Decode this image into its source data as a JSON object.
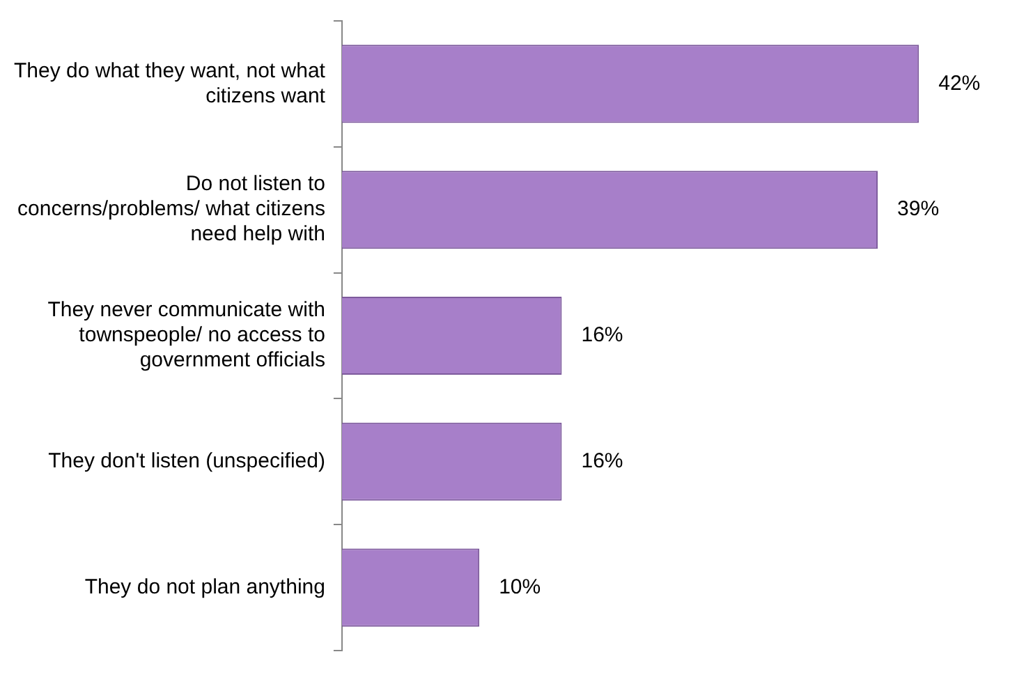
{
  "chart_data": {
    "type": "bar",
    "orientation": "horizontal",
    "categories": [
      "They do what they want, not what citizens want",
      "Do not listen to concerns/problems/ what citizens need help with",
      "They never communicate with townspeople/ no access to government officials",
      "They don't listen (unspecified)",
      "They do not plan anything"
    ],
    "values": [
      42,
      39,
      16,
      16,
      10
    ],
    "value_labels": [
      "42%",
      "39%",
      "16%",
      "16%",
      "10%"
    ],
    "color": "#a77fc9",
    "grid": false,
    "legend": false
  }
}
